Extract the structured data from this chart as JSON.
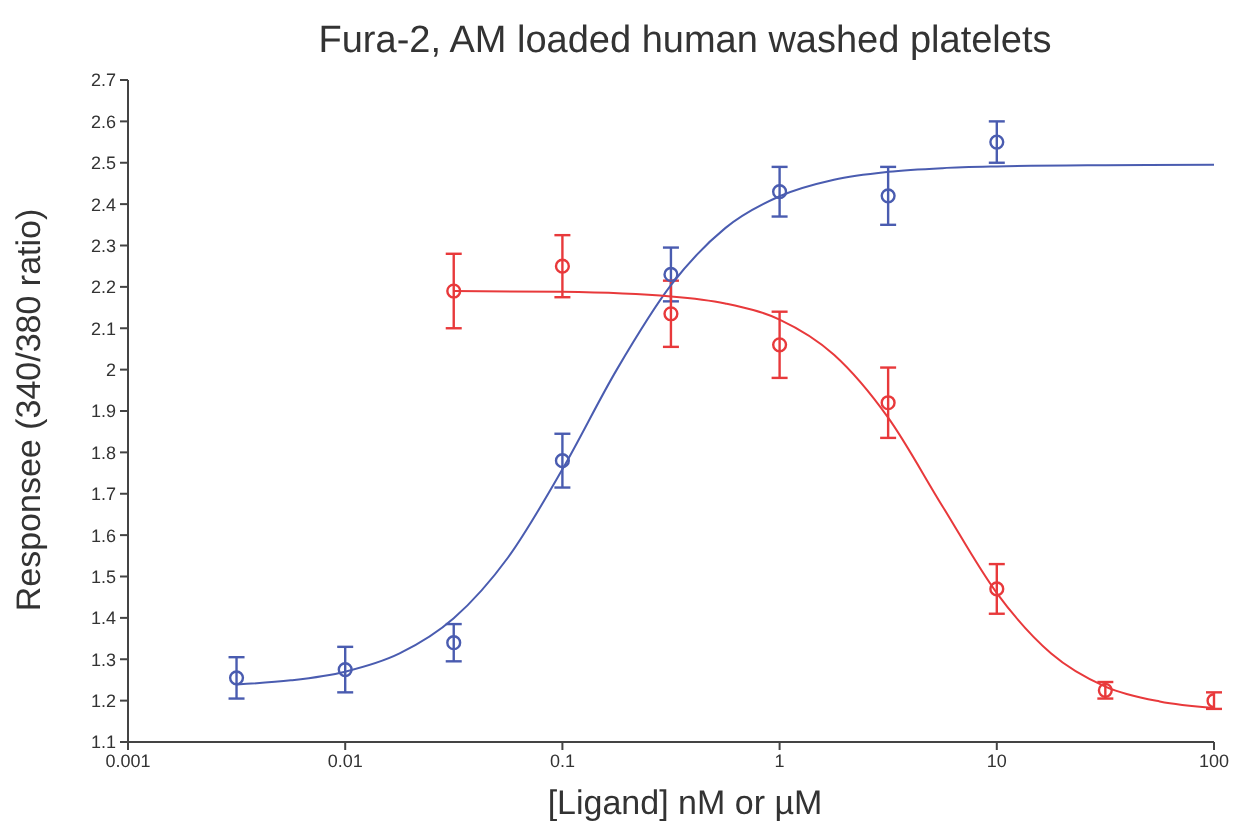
{
  "chart_data": {
    "type": "scatter",
    "title": "Fura-2, AM loaded human washed platelets",
    "xlabel": "[Ligand] nM or µM",
    "ylabel": "Responsee (340/380 ratio)",
    "log": "x",
    "xlim": [
      0.001,
      100
    ],
    "xticks": [
      0.001,
      0.01,
      0.1,
      1,
      10,
      100
    ],
    "ylim": [
      1.1,
      2.7
    ],
    "yticks": [
      1.1,
      1.2,
      1.3,
      1.4,
      1.5,
      1.6,
      1.7,
      1.8,
      1.9,
      2,
      2.1,
      2.2,
      2.3,
      2.4,
      2.5,
      2.6,
      2.7
    ],
    "grid": false,
    "legend": false,
    "marker": "circle",
    "series": [
      {
        "color": "#4a5cb0",
        "x": [
          0.00316,
          0.01,
          0.0316,
          0.1,
          0.316,
          1,
          3.16,
          10
        ],
        "values": [
          1.255,
          1.275,
          1.34,
          1.78,
          2.23,
          2.43,
          2.42,
          2.55
        ],
        "errors": [
          0.05,
          0.055,
          0.045,
          0.065,
          0.065,
          0.06,
          0.07,
          0.05
        ]
      },
      {
        "color": "#e8393b",
        "x": [
          0.0316,
          0.1,
          0.316,
          1,
          3.16,
          10,
          31.6,
          100
        ],
        "values": [
          2.19,
          2.25,
          2.135,
          2.06,
          1.92,
          1.47,
          1.225,
          1.2
        ],
        "errors": [
          0.09,
          0.075,
          0.08,
          0.08,
          0.085,
          0.06,
          0.02,
          0.02
        ]
      },
      {
        "type": "line",
        "color": "#4a5cb0",
        "marker": "none",
        "x": [
          0.00316,
          0.00562,
          0.01,
          0.0178,
          0.0316,
          0.0562,
          0.1,
          0.178,
          0.316,
          0.562,
          1,
          1.78,
          3.16,
          5.62,
          10,
          31.6,
          100
        ],
        "values": [
          1.239,
          1.249,
          1.27,
          1.314,
          1.399,
          1.546,
          1.759,
          2,
          2.204,
          2.342,
          2.419,
          2.459,
          2.478,
          2.487,
          2.491,
          2.494,
          2.495
        ]
      },
      {
        "type": "line",
        "color": "#e8393b",
        "marker": "none",
        "x": [
          0.0316,
          0.1,
          0.316,
          0.562,
          1,
          1.78,
          3.16,
          5.62,
          10,
          17.8,
          31.6,
          56.2,
          100
        ],
        "values": [
          2.19,
          2.188,
          2.177,
          2.16,
          2.121,
          2.036,
          1.884,
          1.67,
          1.46,
          1.314,
          1.234,
          1.198,
          1.182
        ]
      }
    ]
  }
}
